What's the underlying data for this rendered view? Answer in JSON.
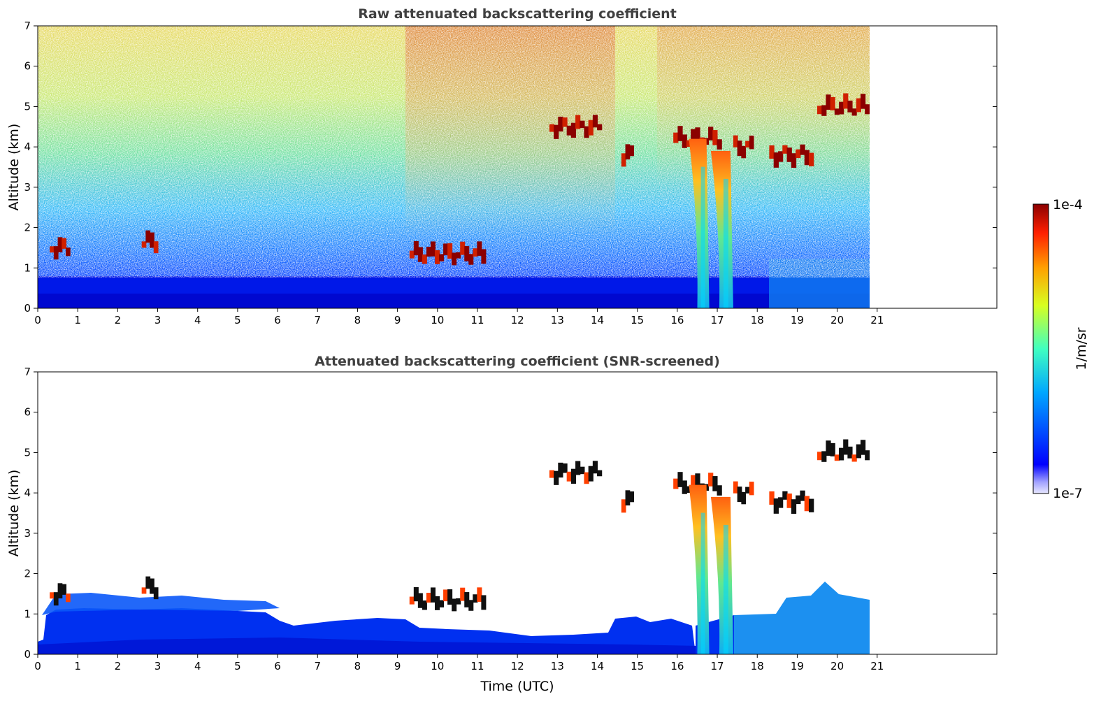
{
  "chart_data": [
    {
      "type": "heatmap",
      "title": "Raw attenuated backscattering coefficient",
      "xlabel": "",
      "ylabel": "Altitude (km)",
      "xlim": [
        0,
        24
      ],
      "ylim": [
        0,
        7
      ],
      "x_ticks": [
        "0",
        "1",
        "2",
        "3",
        "4",
        "5",
        "6",
        "7",
        "8",
        "9",
        "10",
        "11",
        "12",
        "13",
        "14",
        "15",
        "16",
        "17",
        "18",
        "19",
        "20",
        "21"
      ],
      "y_ticks": [
        "0",
        "1",
        "2",
        "3",
        "4",
        "5",
        "6",
        "7"
      ],
      "data_extent_hours": [
        0,
        20.8
      ],
      "cloud_layers": [
        {
          "t_start": 0.3,
          "t_end": 0.8,
          "alt_km": 1.5
        },
        {
          "t_start": 2.6,
          "t_end": 3.0,
          "alt_km": 1.65
        },
        {
          "t_start": 9.3,
          "t_end": 11.2,
          "alt_km": 1.35
        },
        {
          "t_start": 12.8,
          "t_end": 14.1,
          "alt_km": 4.5
        },
        {
          "t_start": 14.6,
          "t_end": 14.9,
          "alt_km": 3.8
        },
        {
          "t_start": 15.9,
          "t_end": 17.1,
          "alt_km": 4.2
        },
        {
          "t_start": 17.4,
          "t_end": 17.9,
          "alt_km": 4.0
        },
        {
          "t_start": 18.3,
          "t_end": 19.4,
          "alt_km": 3.8
        },
        {
          "t_start": 19.5,
          "t_end": 20.8,
          "alt_km": 5.0
        }
      ],
      "precip_shafts": [
        {
          "t_start": 16.5,
          "t_end": 16.8
        },
        {
          "t_start": 17.05,
          "t_end": 17.4
        }
      ]
    },
    {
      "type": "heatmap",
      "title": "Attenuated backscattering coefficient (SNR-screened)",
      "xlabel": "Time (UTC)",
      "ylabel": "Altitude (km)",
      "xlim": [
        0,
        24
      ],
      "ylim": [
        0,
        7
      ],
      "x_ticks": [
        "0",
        "1",
        "2",
        "3",
        "4",
        "5",
        "6",
        "7",
        "8",
        "9",
        "10",
        "11",
        "12",
        "13",
        "14",
        "15",
        "16",
        "17",
        "18",
        "19",
        "20",
        "21"
      ],
      "y_ticks": [
        "0",
        "1",
        "2",
        "3",
        "4",
        "5",
        "6",
        "7"
      ],
      "data_extent_hours": [
        0,
        20.8
      ]
    }
  ],
  "colorbar": {
    "label": "1/m/sr",
    "max_label": "1e-4",
    "min_label": "1e-7",
    "scale": "log",
    "range": [
      1e-07,
      0.0001
    ],
    "colormap": "jet"
  }
}
